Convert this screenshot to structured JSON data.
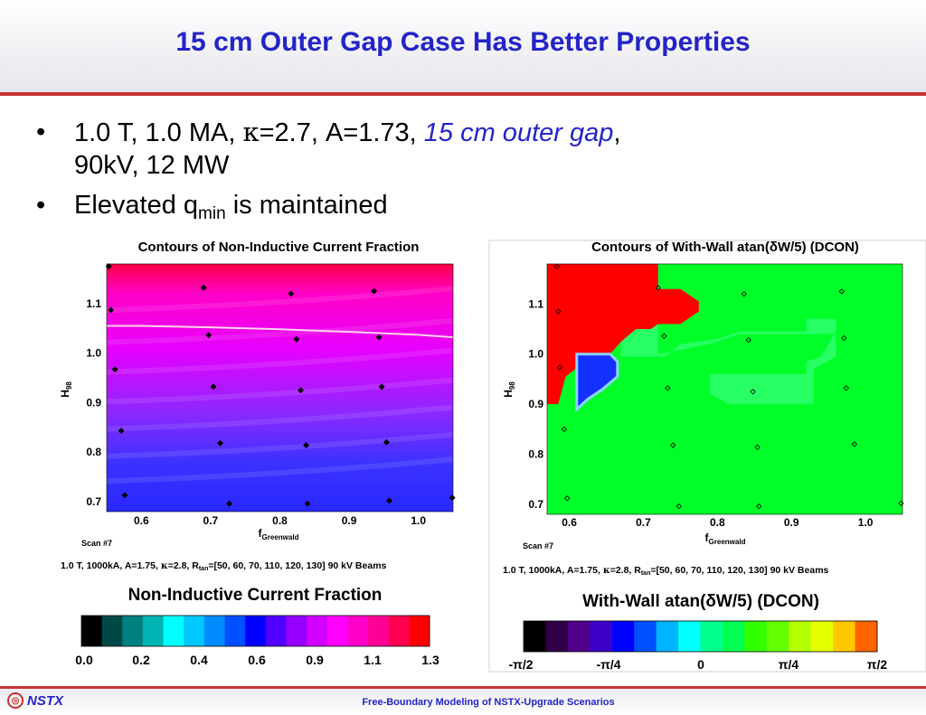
{
  "slide": {
    "title": "15 cm Outer Gap Case Has Better Properties",
    "bullet1": {
      "part1": "1.0 T, 1.0 MA, ",
      "kappa": "κ",
      "part2": "=2.7, A=1.73, ",
      "italic": "15 cm outer gap",
      "part3": ",",
      "line2": "90kV, 12 MW"
    },
    "bullet2": {
      "part1": "Elevated q",
      "sub": "min",
      "part2": " is maintained"
    }
  },
  "colors": {
    "title": "#2424c8",
    "accent_rule": "#c83232"
  },
  "chart_data": [
    {
      "type": "heatmap",
      "title": "Contours of Non-Inductive Current Fraction",
      "xlabel_main": "f",
      "xlabel_sub": "Greenwald",
      "ylabel_main": "H",
      "ylabel_sub": "98",
      "x_ticks": [
        "0.6",
        "0.7",
        "0.8",
        "0.9",
        "1.0"
      ],
      "y_ticks": [
        "0.7",
        "0.8",
        "0.9",
        "1.0",
        "1.1"
      ],
      "xlim": [
        0.55,
        1.05
      ],
      "ylim": [
        0.68,
        1.18
      ],
      "scan_label": "Scan #7",
      "params": {
        "p1": "1.0 T, 1000kA, A=1.75, ",
        "kappa": "κ",
        "p2": "=2.8, R",
        "sub": "tan",
        "p3": "=[50, 60, 70, 110, 120, 130] 90 kV Beams"
      },
      "contour_line": [
        [
          0.55,
          1.055
        ],
        [
          0.6,
          1.055
        ],
        [
          0.7,
          1.052
        ],
        [
          0.8,
          1.048
        ],
        [
          0.9,
          1.043
        ],
        [
          1.0,
          1.037
        ],
        [
          1.05,
          1.032
        ]
      ],
      "points": [
        [
          0.553,
          1.175
        ],
        [
          0.556,
          1.087
        ],
        [
          0.562,
          0.967
        ],
        [
          0.571,
          0.843
        ],
        [
          0.576,
          0.713
        ],
        [
          0.69,
          1.132
        ],
        [
          0.697,
          1.036
        ],
        [
          0.704,
          0.932
        ],
        [
          0.714,
          0.818
        ],
        [
          0.727,
          0.696
        ],
        [
          0.816,
          1.12
        ],
        [
          0.824,
          1.028
        ],
        [
          0.83,
          0.925
        ],
        [
          0.838,
          0.814
        ],
        [
          0.84,
          0.696
        ],
        [
          0.936,
          1.125
        ],
        [
          0.943,
          1.032
        ],
        [
          0.947,
          0.932
        ],
        [
          0.954,
          0.82
        ],
        [
          0.958,
          0.702
        ],
        [
          1.049,
          0.708
        ]
      ],
      "colorbar": {
        "title": "Non-Inductive Current Fraction",
        "colors": [
          "#000000",
          "#004848",
          "#008080",
          "#00b4b4",
          "#00ffff",
          "#00c8ff",
          "#008cff",
          "#0050ff",
          "#0000ff",
          "#5000ff",
          "#9600ff",
          "#d200ff",
          "#ff00ff",
          "#ff00c8",
          "#ff0096",
          "#ff0050",
          "#ff0000"
        ],
        "tick_labels": [
          "0.0",
          "0.2",
          "0.4",
          "0.6",
          "0.9",
          "1.1",
          "1.3"
        ]
      }
    },
    {
      "type": "heatmap",
      "title": "Contours of With-Wall atan(δW/5) (DCON)",
      "xlabel_main": "f",
      "xlabel_sub": "Greenwald",
      "ylabel_main": "H",
      "ylabel_sub": "98",
      "x_ticks": [
        "0.6",
        "0.7",
        "0.8",
        "0.9",
        "1.0"
      ],
      "y_ticks": [
        "0.7",
        "0.8",
        "0.9",
        "1.0",
        "1.1"
      ],
      "xlim": [
        0.57,
        1.05
      ],
      "ylim": [
        0.68,
        1.18
      ],
      "scan_label": "Scan #7",
      "params": {
        "p1": "1.0 T, 1000kA, A=1.75, ",
        "kappa": "κ",
        "p2": "=2.8, R",
        "sub": "tan",
        "p3": "=[50, 60, 70, 110, 120, 130] 90 kV Beams"
      },
      "regions": {
        "red": [
          [
            0.57,
            1.18
          ],
          [
            0.72,
            1.18
          ],
          [
            0.72,
            1.13
          ],
          [
            0.75,
            1.13
          ],
          [
            0.775,
            1.105
          ],
          [
            0.775,
            1.085
          ],
          [
            0.75,
            1.06
          ],
          [
            0.72,
            1.06
          ],
          [
            0.71,
            1.05
          ],
          [
            0.69,
            1.05
          ],
          [
            0.67,
            1.025
          ],
          [
            0.655,
            1.0
          ],
          [
            0.625,
            0.99
          ],
          [
            0.595,
            0.955
          ],
          [
            0.585,
            0.9
          ],
          [
            0.57,
            0.9
          ]
        ],
        "blue": [
          [
            0.61,
            1.0
          ],
          [
            0.655,
            1.0
          ],
          [
            0.665,
            0.985
          ],
          [
            0.665,
            0.955
          ],
          [
            0.645,
            0.93
          ],
          [
            0.625,
            0.91
          ],
          [
            0.61,
            0.89
          ],
          [
            0.61,
            0.94
          ]
        ],
        "light1": [
          [
            0.72,
            1.13
          ],
          [
            0.75,
            1.13
          ],
          [
            0.775,
            1.105
          ],
          [
            0.775,
            1.085
          ],
          [
            0.75,
            1.06
          ],
          [
            0.72,
            1.06
          ],
          [
            0.71,
            1.05
          ],
          [
            0.69,
            1.05
          ],
          [
            0.67,
            1.025
          ],
          [
            0.67,
            0.995
          ],
          [
            0.73,
            0.995
          ],
          [
            0.75,
            1.02
          ],
          [
            0.8,
            1.03
          ],
          [
            0.83,
            1.045
          ],
          [
            0.92,
            1.045
          ],
          [
            0.92,
            1.07
          ],
          [
            0.96,
            1.07
          ],
          [
            0.96,
            1.045
          ],
          [
            0.94,
            0.995
          ],
          [
            0.92,
            0.985
          ],
          [
            0.92,
            0.96
          ],
          [
            0.79,
            0.96
          ],
          [
            0.79,
            0.92
          ],
          [
            0.815,
            0.9
          ],
          [
            0.93,
            0.9
          ],
          [
            0.93,
            0.97
          ],
          [
            0.96,
            0.995
          ],
          [
            0.96,
            1.04
          ],
          [
            0.86,
            1.04
          ],
          [
            0.83,
            1.04
          ],
          [
            0.79,
            1.02
          ],
          [
            0.72,
            1.0
          ]
        ]
      },
      "points": [
        [
          0.583,
          1.175
        ],
        [
          0.585,
          1.085
        ],
        [
          0.587,
          0.973
        ],
        [
          0.593,
          0.85
        ],
        [
          0.597,
          0.712
        ],
        [
          0.72,
          1.132
        ],
        [
          0.728,
          1.036
        ],
        [
          0.733,
          0.932
        ],
        [
          0.74,
          0.818
        ],
        [
          0.748,
          0.696
        ],
        [
          0.836,
          1.12
        ],
        [
          0.842,
          1.028
        ],
        [
          0.848,
          0.925
        ],
        [
          0.854,
          0.814
        ],
        [
          0.856,
          0.696
        ],
        [
          0.968,
          1.125
        ],
        [
          0.971,
          1.032
        ],
        [
          0.974,
          0.932
        ],
        [
          0.985,
          0.82
        ],
        [
          1.048,
          0.702
        ]
      ],
      "colorbar": {
        "title": "With-Wall atan(δW/5) (DCON)",
        "colors": [
          "#000000",
          "#320046",
          "#50008c",
          "#3c00c8",
          "#0000ff",
          "#0050ff",
          "#00b4ff",
          "#00ffff",
          "#00ff8c",
          "#00ff50",
          "#32ff00",
          "#64ff00",
          "#b4ff00",
          "#e6ff00",
          "#ffc800",
          "#ff6400"
        ],
        "tick_labels": [
          "-π/2",
          "-π/4",
          "0",
          "π/4",
          "π/2"
        ]
      }
    }
  ],
  "footer": {
    "logo_text": "NSTX",
    "caption": "Free-Boundary Modeling of NSTX-Upgrade Scenarios"
  }
}
